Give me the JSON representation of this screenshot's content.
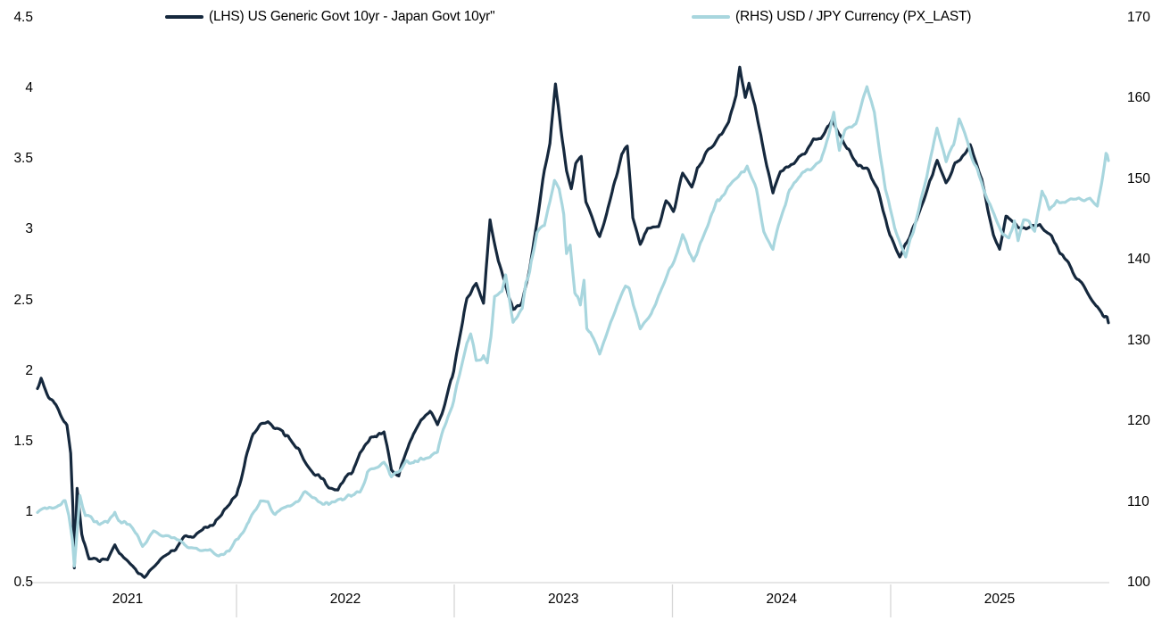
{
  "legend": {
    "position": "top",
    "items": [
      {
        "id": "lhs",
        "label": "(LHS) US Generic Govt 10yr - Japan Govt 10yr\"",
        "color": "#15283d"
      },
      {
        "id": "rhs",
        "label": "(RHS) USD / JPY Currency (PX_LAST)",
        "color": "#a8d6de"
      }
    ]
  },
  "chart_data": {
    "type": "line",
    "title": "",
    "grid": false,
    "legend_position": "top",
    "x_axis": {
      "labels": [
        "2021",
        "2022",
        "2023",
        "2024",
        "2025"
      ],
      "domain": [
        2020.0,
        2025.81
      ]
    },
    "left_axis": {
      "min": 0.5,
      "max": 4.5,
      "ticks": [
        4.5,
        4,
        3.5,
        3,
        2.5,
        2,
        1.5,
        1,
        0.5
      ]
    },
    "right_axis": {
      "min": 100,
      "max": 170,
      "ticks": [
        170,
        160,
        150,
        140,
        130,
        120,
        110,
        100
      ]
    },
    "axis_line_color": "#d6d6d6",
    "series": [
      {
        "id": "lhs",
        "name": "(LHS) US Generic Govt 10yr - Japan Govt 10yr\"",
        "axis": "left",
        "color": "#15283d",
        "points": [
          [
            2020.0,
            1.88
          ],
          [
            2020.02,
            1.94
          ],
          [
            2020.06,
            1.82
          ],
          [
            2020.1,
            1.76
          ],
          [
            2020.13,
            1.67
          ],
          [
            2020.16,
            1.6
          ],
          [
            2020.18,
            1.4
          ],
          [
            2020.192,
            1.02
          ],
          [
            2020.2,
            0.6
          ],
          [
            2020.215,
            1.14
          ],
          [
            2020.24,
            0.83
          ],
          [
            2020.28,
            0.68
          ],
          [
            2020.33,
            0.65
          ],
          [
            2020.38,
            0.66
          ],
          [
            2020.42,
            0.78
          ],
          [
            2020.46,
            0.7
          ],
          [
            2020.5,
            0.64
          ],
          [
            2020.54,
            0.58
          ],
          [
            2020.58,
            0.55
          ],
          [
            2020.63,
            0.62
          ],
          [
            2020.67,
            0.68
          ],
          [
            2020.75,
            0.72
          ],
          [
            2020.79,
            0.8
          ],
          [
            2020.83,
            0.83
          ],
          [
            2020.88,
            0.86
          ],
          [
            2020.92,
            0.9
          ],
          [
            2020.96,
            0.91
          ],
          [
            2021.0,
            0.98
          ],
          [
            2021.04,
            1.05
          ],
          [
            2021.08,
            1.12
          ],
          [
            2021.13,
            1.38
          ],
          [
            2021.17,
            1.55
          ],
          [
            2021.21,
            1.62
          ],
          [
            2021.25,
            1.64
          ],
          [
            2021.29,
            1.58
          ],
          [
            2021.33,
            1.55
          ],
          [
            2021.42,
            1.42
          ],
          [
            2021.5,
            1.28
          ],
          [
            2021.54,
            1.22
          ],
          [
            2021.58,
            1.19
          ],
          [
            2021.63,
            1.17
          ],
          [
            2021.67,
            1.24
          ],
          [
            2021.71,
            1.3
          ],
          [
            2021.75,
            1.42
          ],
          [
            2021.79,
            1.5
          ],
          [
            2021.83,
            1.55
          ],
          [
            2021.88,
            1.57
          ],
          [
            2021.92,
            1.3
          ],
          [
            2021.96,
            1.26
          ],
          [
            2022.0,
            1.42
          ],
          [
            2022.04,
            1.55
          ],
          [
            2022.08,
            1.65
          ],
          [
            2022.13,
            1.7
          ],
          [
            2022.17,
            1.62
          ],
          [
            2022.21,
            1.78
          ],
          [
            2022.25,
            1.95
          ],
          [
            2022.29,
            2.25
          ],
          [
            2022.33,
            2.51
          ],
          [
            2022.38,
            2.62
          ],
          [
            2022.42,
            2.5
          ],
          [
            2022.455,
            3.08
          ],
          [
            2022.5,
            2.78
          ],
          [
            2022.54,
            2.6
          ],
          [
            2022.58,
            2.42
          ],
          [
            2022.63,
            2.5
          ],
          [
            2022.67,
            2.75
          ],
          [
            2022.71,
            3.05
          ],
          [
            2022.75,
            3.43
          ],
          [
            2022.78,
            3.6
          ],
          [
            2022.81,
            4.01
          ],
          [
            2022.84,
            3.7
          ],
          [
            2022.87,
            3.42
          ],
          [
            2022.896,
            3.3
          ],
          [
            2022.92,
            3.45
          ],
          [
            2022.95,
            3.5
          ],
          [
            2022.975,
            3.2
          ],
          [
            2023.0,
            3.12
          ],
          [
            2023.05,
            2.96
          ],
          [
            2023.11,
            3.22
          ],
          [
            2023.17,
            3.55
          ],
          [
            2023.2,
            3.6
          ],
          [
            2023.23,
            3.1
          ],
          [
            2023.27,
            2.92
          ],
          [
            2023.31,
            3.02
          ],
          [
            2023.37,
            3.0
          ],
          [
            2023.41,
            3.2
          ],
          [
            2023.45,
            3.15
          ],
          [
            2023.5,
            3.38
          ],
          [
            2023.55,
            3.3
          ],
          [
            2023.58,
            3.45
          ],
          [
            2023.62,
            3.52
          ],
          [
            2023.67,
            3.61
          ],
          [
            2023.75,
            3.75
          ],
          [
            2023.79,
            3.95
          ],
          [
            2023.81,
            4.14
          ],
          [
            2023.84,
            3.95
          ],
          [
            2023.86,
            4.05
          ],
          [
            2023.9,
            3.8
          ],
          [
            2023.94,
            3.55
          ],
          [
            2023.99,
            3.25
          ],
          [
            2024.03,
            3.4
          ],
          [
            2024.08,
            3.45
          ],
          [
            2024.13,
            3.52
          ],
          [
            2024.17,
            3.55
          ],
          [
            2024.21,
            3.62
          ],
          [
            2024.25,
            3.65
          ],
          [
            2024.31,
            3.78
          ],
          [
            2024.37,
            3.63
          ],
          [
            2024.43,
            3.49
          ],
          [
            2024.5,
            3.43
          ],
          [
            2024.557,
            3.3
          ],
          [
            2024.625,
            2.95
          ],
          [
            2024.678,
            2.81
          ],
          [
            2024.731,
            2.95
          ],
          [
            2024.808,
            3.2
          ],
          [
            2024.881,
            3.49
          ],
          [
            2024.929,
            3.34
          ],
          [
            2024.978,
            3.45
          ],
          [
            2025.06,
            3.58
          ],
          [
            2025.123,
            3.35
          ],
          [
            2025.186,
            2.95
          ],
          [
            2025.22,
            2.86
          ],
          [
            2025.254,
            3.09
          ],
          [
            2025.317,
            3.02
          ],
          [
            2025.38,
            3.0
          ],
          [
            2025.438,
            3.05
          ],
          [
            2025.51,
            2.92
          ],
          [
            2025.593,
            2.76
          ],
          [
            2025.665,
            2.62
          ],
          [
            2025.743,
            2.48
          ],
          [
            2025.81,
            2.34
          ]
        ]
      },
      {
        "id": "rhs",
        "name": "(RHS) USD / JPY Currency (PX_LAST)",
        "axis": "right",
        "color": "#a8d6de",
        "points": [
          [
            2020.0,
            108.7
          ],
          [
            2020.04,
            109.1
          ],
          [
            2020.08,
            109.3
          ],
          [
            2020.13,
            109.8
          ],
          [
            2020.15,
            110.0
          ],
          [
            2020.17,
            108.4
          ],
          [
            2020.19,
            105.3
          ],
          [
            2020.2,
            102.0
          ],
          [
            2020.23,
            111.0
          ],
          [
            2020.26,
            108.2
          ],
          [
            2020.29,
            107.8
          ],
          [
            2020.33,
            107.2
          ],
          [
            2020.38,
            107.6
          ],
          [
            2020.42,
            108.9
          ],
          [
            2020.44,
            107.5
          ],
          [
            2020.5,
            107.2
          ],
          [
            2020.54,
            106.2
          ],
          [
            2020.57,
            104.8
          ],
          [
            2020.63,
            106.1
          ],
          [
            2020.67,
            105.7
          ],
          [
            2020.71,
            105.4
          ],
          [
            2020.75,
            105.3
          ],
          [
            2020.79,
            104.9
          ],
          [
            2020.83,
            104.2
          ],
          [
            2020.88,
            103.9
          ],
          [
            2020.92,
            103.9
          ],
          [
            2020.96,
            103.5
          ],
          [
            2021.0,
            103.3
          ],
          [
            2021.04,
            103.8
          ],
          [
            2021.08,
            105.4
          ],
          [
            2021.13,
            106.6
          ],
          [
            2021.17,
            108.6
          ],
          [
            2021.21,
            110.3
          ],
          [
            2021.25,
            110.0
          ],
          [
            2021.29,
            108.8
          ],
          [
            2021.33,
            109.2
          ],
          [
            2021.38,
            109.8
          ],
          [
            2021.42,
            110.4
          ],
          [
            2021.46,
            111.0
          ],
          [
            2021.5,
            110.5
          ],
          [
            2021.54,
            109.8
          ],
          [
            2021.58,
            109.5
          ],
          [
            2021.63,
            110.0
          ],
          [
            2021.67,
            110.2
          ],
          [
            2021.71,
            111.2
          ],
          [
            2021.75,
            111.5
          ],
          [
            2021.79,
            113.5
          ],
          [
            2021.83,
            114.1
          ],
          [
            2021.88,
            114.9
          ],
          [
            2021.92,
            113.4
          ],
          [
            2021.96,
            114.2
          ],
          [
            2022.0,
            115.1
          ],
          [
            2022.04,
            114.6
          ],
          [
            2022.08,
            115.0
          ],
          [
            2022.13,
            115.3
          ],
          [
            2022.17,
            116.2
          ],
          [
            2022.21,
            119.5
          ],
          [
            2022.25,
            121.8
          ],
          [
            2022.29,
            125.5
          ],
          [
            2022.33,
            129.5
          ],
          [
            2022.35,
            130.5
          ],
          [
            2022.38,
            127.5
          ],
          [
            2022.42,
            128.5
          ],
          [
            2022.44,
            126.9
          ],
          [
            2022.46,
            130.0
          ],
          [
            2022.48,
            135.2
          ],
          [
            2022.52,
            136.0
          ],
          [
            2022.54,
            138.3
          ],
          [
            2022.58,
            132.5
          ],
          [
            2022.63,
            133.5
          ],
          [
            2022.65,
            137.0
          ],
          [
            2022.67,
            138.5
          ],
          [
            2022.71,
            143.5
          ],
          [
            2022.75,
            144.5
          ],
          [
            2022.78,
            147.5
          ],
          [
            2022.805,
            150.2
          ],
          [
            2022.83,
            149.0
          ],
          [
            2022.855,
            146.0
          ],
          [
            2022.87,
            141.0
          ],
          [
            2022.89,
            142.0
          ],
          [
            2022.915,
            136.0
          ],
          [
            2022.945,
            134.3
          ],
          [
            2022.965,
            137.5
          ],
          [
            2022.98,
            131.5
          ],
          [
            2023.0,
            131.0
          ],
          [
            2023.05,
            128.2
          ],
          [
            2023.11,
            132.5
          ],
          [
            2023.19,
            137.0
          ],
          [
            2023.21,
            136.5
          ],
          [
            2023.27,
            131.3
          ],
          [
            2023.33,
            133.5
          ],
          [
            2023.41,
            137.5
          ],
          [
            2023.5,
            143.1
          ],
          [
            2023.56,
            139.8
          ],
          [
            2023.62,
            143.5
          ],
          [
            2023.69,
            147.5
          ],
          [
            2023.77,
            149.5
          ],
          [
            2023.85,
            151.8
          ],
          [
            2023.9,
            148.5
          ],
          [
            2023.94,
            144.0
          ],
          [
            2023.99,
            141.5
          ],
          [
            2024.02,
            144.0
          ],
          [
            2024.08,
            148.2
          ],
          [
            2024.13,
            150.2
          ],
          [
            2024.17,
            151.3
          ],
          [
            2024.21,
            151.8
          ],
          [
            2024.25,
            152.3
          ],
          [
            2024.29,
            155.5
          ],
          [
            2024.32,
            158.4
          ],
          [
            2024.35,
            153.5
          ],
          [
            2024.38,
            155.8
          ],
          [
            2024.44,
            157.0
          ],
          [
            2024.5,
            161.6
          ],
          [
            2024.54,
            158.5
          ],
          [
            2024.57,
            153.5
          ],
          [
            2024.6,
            149.0
          ],
          [
            2024.65,
            144.0
          ],
          [
            2024.69,
            141.6
          ],
          [
            2024.71,
            140.4
          ],
          [
            2024.76,
            144.5
          ],
          [
            2024.84,
            152.0
          ],
          [
            2024.88,
            156.4
          ],
          [
            2024.93,
            152.6
          ],
          [
            2024.97,
            154.5
          ],
          [
            2025.0,
            157.5
          ],
          [
            2025.07,
            153.0
          ],
          [
            2025.13,
            148.7
          ],
          [
            2025.19,
            146.0
          ],
          [
            2025.24,
            142.8
          ],
          [
            2025.27,
            142.5
          ],
          [
            2025.3,
            144.8
          ],
          [
            2025.32,
            142.7
          ],
          [
            2025.35,
            145.0
          ],
          [
            2025.38,
            144.6
          ],
          [
            2025.41,
            143.3
          ],
          [
            2025.45,
            148.4
          ],
          [
            2025.49,
            146.3
          ],
          [
            2025.53,
            147.5
          ],
          [
            2025.59,
            147.2
          ],
          [
            2025.65,
            147.6
          ],
          [
            2025.71,
            147.9
          ],
          [
            2025.75,
            146.6
          ],
          [
            2025.78,
            150.5
          ],
          [
            2025.797,
            152.9
          ],
          [
            2025.81,
            152.3
          ]
        ]
      }
    ]
  }
}
